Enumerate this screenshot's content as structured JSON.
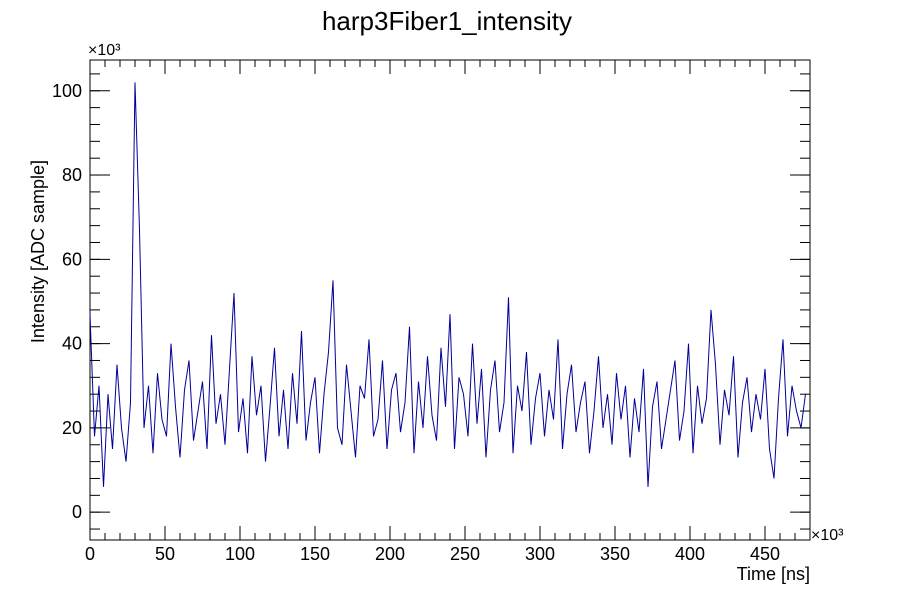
{
  "chart_data": {
    "type": "line",
    "title": "harp3Fiber1_intensity",
    "x_label": "Time [ns]",
    "y_label": "Intensity [ADC sample]",
    "x_multiplier": "×10³",
    "y_multiplier": "×10³",
    "xlim": [
      0,
      480
    ],
    "ylim": [
      -6.6,
      107.3
    ],
    "xticks": [
      0,
      50,
      100,
      150,
      200,
      250,
      300,
      350,
      400,
      450
    ],
    "yticks": [
      0,
      20,
      40,
      60,
      80,
      100
    ],
    "x": [
      0,
      3,
      6,
      9,
      12,
      15,
      18,
      21,
      24,
      27,
      30,
      33,
      36,
      39,
      42,
      45,
      48,
      51,
      54,
      57,
      60,
      63,
      66,
      69,
      72,
      75,
      78,
      81,
      84,
      87,
      90,
      93,
      96,
      99,
      102,
      105,
      108,
      111,
      114,
      117,
      120,
      123,
      126,
      129,
      132,
      135,
      138,
      141,
      144,
      147,
      150,
      153,
      156,
      159,
      162,
      165,
      168,
      171,
      174,
      177,
      180,
      183,
      186,
      189,
      192,
      195,
      198,
      201,
      204,
      207,
      210,
      213,
      216,
      219,
      222,
      225,
      228,
      231,
      234,
      237,
      240,
      243,
      246,
      249,
      252,
      255,
      258,
      261,
      264,
      267,
      270,
      273,
      276,
      279,
      282,
      285,
      288,
      291,
      294,
      297,
      300,
      303,
      306,
      309,
      312,
      315,
      318,
      321,
      324,
      327,
      330,
      333,
      336,
      339,
      342,
      345,
      348,
      351,
      354,
      357,
      360,
      363,
      366,
      369,
      372,
      375,
      378,
      381,
      384,
      387,
      390,
      393,
      396,
      399,
      402,
      405,
      408,
      411,
      414,
      417,
      420,
      423,
      426,
      429,
      432,
      435,
      438,
      441,
      444,
      447,
      450,
      453,
      456,
      459,
      462,
      465,
      468,
      471,
      474,
      477
    ],
    "series": [
      {
        "name": "intensity",
        "color": "#000099",
        "values": [
          47,
          18,
          30,
          6,
          28,
          15,
          35,
          20,
          12,
          26,
          102,
          67,
          20,
          30,
          14,
          33,
          22,
          18,
          40,
          25,
          13,
          29,
          36,
          17,
          24,
          31,
          15,
          42,
          21,
          28,
          16,
          34,
          52,
          19,
          27,
          14,
          37,
          23,
          30,
          12,
          25,
          39,
          18,
          29,
          15,
          33,
          21,
          43,
          17,
          26,
          32,
          14,
          28,
          38,
          55,
          20,
          16,
          35,
          24,
          13,
          30,
          27,
          41,
          18,
          22,
          36,
          15,
          29,
          33,
          19,
          26,
          44,
          14,
          31,
          20,
          37,
          23,
          17,
          39,
          25,
          47,
          15,
          32,
          28,
          18,
          40,
          21,
          34,
          13,
          29,
          36,
          19,
          26,
          51,
          14,
          30,
          24,
          38,
          16,
          27,
          33,
          18,
          29,
          22,
          41,
          15,
          28,
          35,
          19,
          26,
          31,
          14,
          24,
          37,
          20,
          28,
          16,
          33,
          22,
          30,
          13,
          27,
          19,
          34,
          6,
          25,
          31,
          15,
          22,
          29,
          36,
          17,
          24,
          40,
          14,
          30,
          21,
          27,
          48,
          35,
          16,
          29,
          23,
          37,
          13,
          26,
          32,
          19,
          28,
          22,
          34,
          15,
          8,
          27,
          41,
          18,
          30,
          24,
          20,
          28
        ]
      }
    ]
  }
}
